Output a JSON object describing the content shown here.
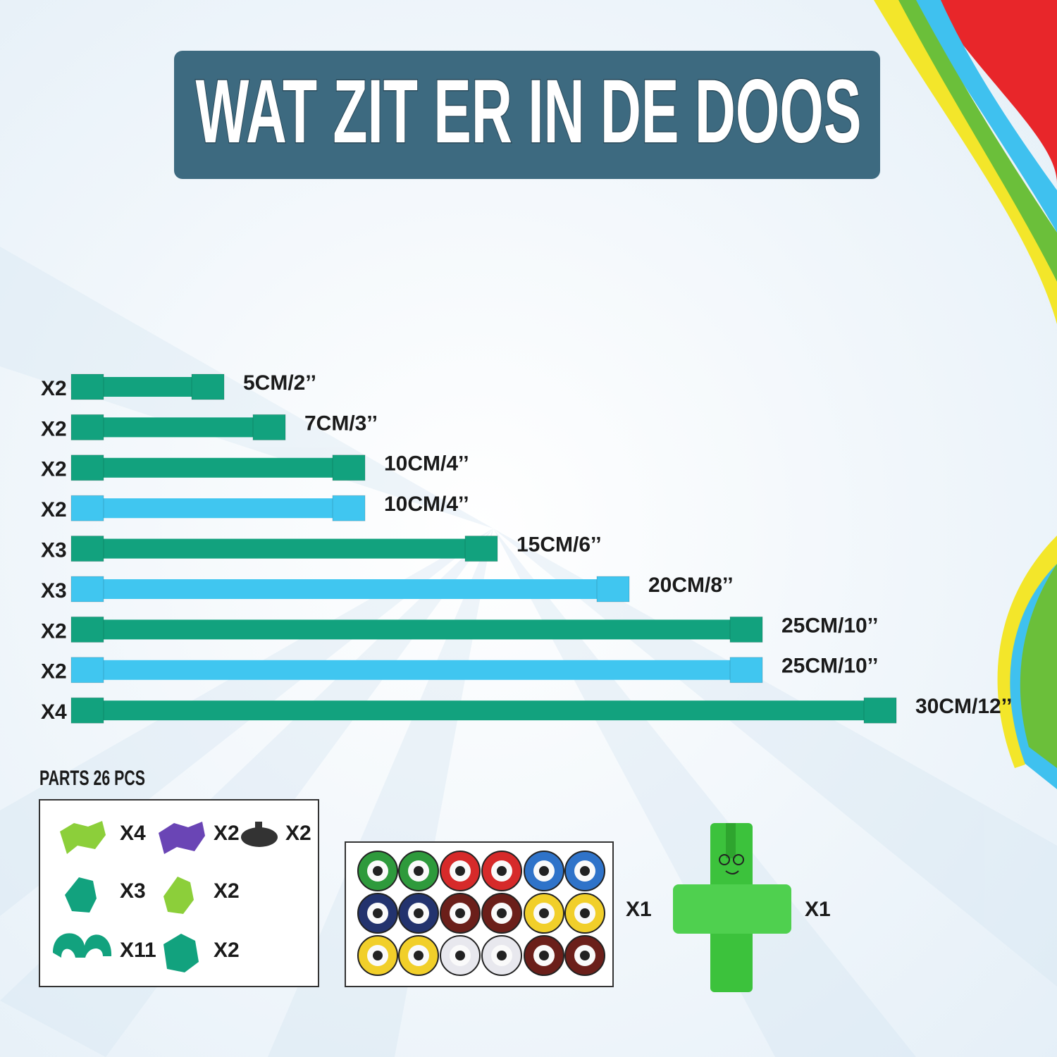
{
  "header": {
    "title": "WAT ZIT ER IN DE DOOS"
  },
  "rods": [
    {
      "count": "X2",
      "label": "5CM/2’’",
      "color": "#12a27e"
    },
    {
      "count": "X2",
      "label": "7CM/3’’",
      "color": "#12a27e"
    },
    {
      "count": "X2",
      "label": "10CM/4’’",
      "color": "#12a27e"
    },
    {
      "count": "X2",
      "label": "10CM/4’’",
      "color": "#40c6f0"
    },
    {
      "count": "X3",
      "label": "15CM/6’’",
      "color": "#12a27e"
    },
    {
      "count": "X3",
      "label": "20CM/8’’",
      "color": "#40c6f0"
    },
    {
      "count": "X2",
      "label": "25CM/10’’",
      "color": "#12a27e"
    },
    {
      "count": "X2",
      "label": "25CM/10’’",
      "color": "#40c6f0"
    },
    {
      "count": "X4",
      "label": "30CM/12’’",
      "color": "#12a27e"
    }
  ],
  "parts": {
    "title": "PARTS  26 PCS",
    "items": [
      "X4",
      "X2",
      "X2",
      "X3",
      "X2",
      "X11",
      "X2"
    ]
  },
  "eye_sheet": {
    "count": "X1"
  },
  "figure": {
    "count": "X1"
  }
}
